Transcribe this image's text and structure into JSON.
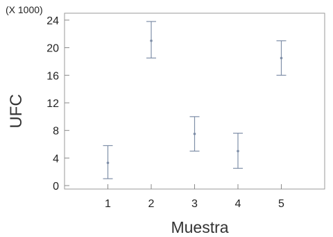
{
  "chart_data": {
    "type": "scatter",
    "title": "",
    "multiplier_label": "(X 1000)",
    "ylabel": "UFC",
    "xlabel": "Muestra",
    "categories": [
      "1",
      "2",
      "3",
      "4",
      "5"
    ],
    "x": [
      1,
      2,
      3,
      4,
      5
    ],
    "series": [
      {
        "mean": [
          3.3,
          21.0,
          7.5,
          5.0,
          18.5
        ],
        "lower": [
          1.0,
          18.5,
          5.0,
          2.5,
          16.0
        ],
        "upper": [
          5.8,
          23.8,
          10.0,
          7.6,
          21.0
        ]
      }
    ],
    "xlim": [
      0,
      6
    ],
    "ylim": [
      -0.5,
      25
    ],
    "yticks": [
      "0",
      "4",
      "8",
      "12",
      "16",
      "20",
      "24"
    ],
    "grid": false,
    "colors": {
      "marker": "#7f8fa8",
      "axis": "#888888",
      "text": "#222222"
    }
  }
}
